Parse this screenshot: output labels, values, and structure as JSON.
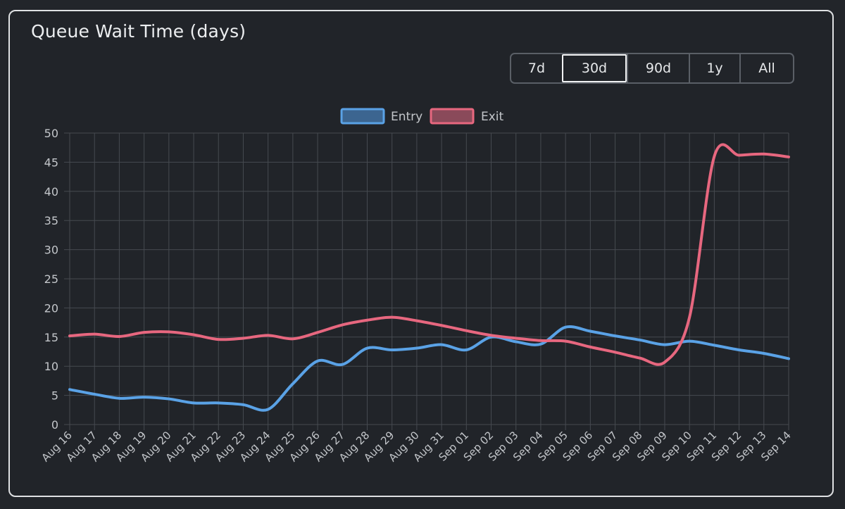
{
  "title": "Queue Wait Time (days)",
  "range_buttons": [
    {
      "label": "7d",
      "active": false
    },
    {
      "label": "30d",
      "active": true
    },
    {
      "label": "90d",
      "active": false
    },
    {
      "label": "1y",
      "active": false
    },
    {
      "label": "All",
      "active": false
    }
  ],
  "colors": {
    "entry": "#5aa2e6",
    "entry_fill": "#3c6590",
    "exit": "#e7677f",
    "exit_fill": "#8a4a5a",
    "grid": "#464a50",
    "tick_text": "#c3c6ca",
    "legend_text": "#c3c6ca"
  },
  "chart_data": {
    "type": "line",
    "title": "Queue Wait Time (days)",
    "categories": [
      "Aug 16",
      "Aug 17",
      "Aug 18",
      "Aug 19",
      "Aug 20",
      "Aug 21",
      "Aug 22",
      "Aug 23",
      "Aug 24",
      "Aug 25",
      "Aug 26",
      "Aug 27",
      "Aug 28",
      "Aug 29",
      "Aug 30",
      "Aug 31",
      "Sep 01",
      "Sep 02",
      "Sep 03",
      "Sep 04",
      "Sep 05",
      "Sep 06",
      "Sep 07",
      "Sep 08",
      "Sep 09",
      "Sep 10",
      "Sep 11",
      "Sep 12",
      "Sep 13",
      "Sep 14"
    ],
    "series": [
      {
        "name": "Entry",
        "color": "#5aa2e6",
        "values": [
          6.0,
          5.2,
          4.5,
          4.7,
          4.4,
          3.7,
          3.7,
          3.4,
          2.6,
          7.0,
          10.9,
          10.3,
          13.1,
          12.8,
          13.1,
          13.7,
          12.8,
          15.0,
          14.2,
          13.8,
          16.7,
          16.0,
          15.2,
          14.5,
          13.7,
          14.3,
          13.6,
          12.8,
          12.2,
          11.3
        ]
      },
      {
        "name": "Exit",
        "color": "#e7677f",
        "values": [
          15.2,
          15.5,
          15.1,
          15.8,
          15.9,
          15.4,
          14.6,
          14.8,
          15.3,
          14.7,
          15.8,
          17.1,
          17.9,
          18.4,
          17.8,
          17.0,
          16.1,
          15.3,
          14.8,
          14.4,
          14.3,
          13.3,
          12.4,
          11.4,
          10.7,
          18.4,
          46.0,
          46.2,
          46.4,
          45.9
        ]
      }
    ],
    "ylim": [
      0,
      50
    ],
    "yticks": [
      0,
      5,
      10,
      15,
      20,
      25,
      30,
      35,
      40,
      45,
      50
    ],
    "grid": true,
    "legend_position": "top-center"
  }
}
